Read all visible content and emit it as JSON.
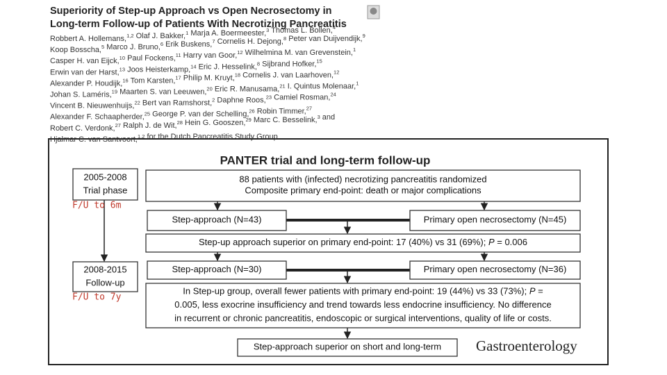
{
  "paper": {
    "title": [
      "Superiority of Step-up Approach vs Open Necrosectomy in",
      "Long-term Follow-up of Patients With Necrotizing Pancreatitis"
    ],
    "author_lines": [
      [
        {
          "name": "Robbert A. Hollemans,",
          "sup": "1,2"
        },
        {
          "name": "Olaf J. Bakker,",
          "sup": "1"
        },
        {
          "name": "Marja A. Boermeester,",
          "sup": "3"
        },
        {
          "name": "Thomas L. Bollen,",
          "sup": "4"
        }
      ],
      [
        {
          "name": "Koop Bosscha,",
          "sup": "5"
        },
        {
          "name": "Marco J. Bruno,",
          "sup": "6"
        },
        {
          "name": "Erik Buskens,",
          "sup": "7"
        },
        {
          "name": "Cornelis H. Dejong,",
          "sup": "8"
        },
        {
          "name": "Peter van Duijvendijk,",
          "sup": "9"
        }
      ],
      [
        {
          "name": "Casper H. van Eijck,",
          "sup": "10"
        },
        {
          "name": "Paul Fockens,",
          "sup": "11"
        },
        {
          "name": "Harry van Goor,",
          "sup": "12"
        },
        {
          "name": "Wilhelmina M. van Grevenstein,",
          "sup": "1"
        }
      ],
      [
        {
          "name": "Erwin van der Harst,",
          "sup": "13"
        },
        {
          "name": "Joos Heisterkamp,",
          "sup": "14"
        },
        {
          "name": "Eric J. Hesselink,",
          "sup": "8"
        },
        {
          "name": "Sijbrand Hofker,",
          "sup": "15"
        }
      ],
      [
        {
          "name": "Alexander P. Houdijk,",
          "sup": "16"
        },
        {
          "name": "Tom Karsten,",
          "sup": "17"
        },
        {
          "name": "Philip M. Kruyt,",
          "sup": "18"
        },
        {
          "name": "Cornelis J. van Laarhoven,",
          "sup": "12"
        }
      ],
      [
        {
          "name": "Johan S. Laméris,",
          "sup": "19"
        },
        {
          "name": "Maarten S. van Leeuwen,",
          "sup": "20"
        },
        {
          "name": "Eric R. Manusama,",
          "sup": "21"
        },
        {
          "name": "I. Quintus Molenaar,",
          "sup": "1"
        }
      ],
      [
        {
          "name": "Vincent B. Nieuwenhuijs,",
          "sup": "22"
        },
        {
          "name": "Bert van Ramshorst,",
          "sup": "2"
        },
        {
          "name": "Daphne Roos,",
          "sup": "23"
        },
        {
          "name": "Camiel Rosman,",
          "sup": "24"
        }
      ],
      [
        {
          "name": "Alexander F. Schaapherder,",
          "sup": "25"
        },
        {
          "name": "George P. van der Schelling,",
          "sup": "26"
        },
        {
          "name": "Robin Timmer,",
          "sup": "27"
        }
      ],
      [
        {
          "name": "Robert C. Verdonk,",
          "sup": "27"
        },
        {
          "name": "Ralph J. de Wit,",
          "sup": "28"
        },
        {
          "name": "Hein G. Gooszen,",
          "sup": "29"
        },
        {
          "name": "Marc C. Besselink,",
          "sup": "3",
          "after": "and"
        }
      ],
      [
        {
          "name": "Hjalmar C. van Santvoort,",
          "sup": "1,2",
          "after": "for the Dutch Pancreatitis Study Group"
        }
      ]
    ]
  },
  "diagram": {
    "title": "PANTER trial and long-term follow-up",
    "phases": [
      {
        "lines": [
          "2005-2008",
          "Trial phase"
        ],
        "note": "F/U to 6m"
      },
      {
        "lines": [
          "2008-2015",
          "Follow-up"
        ],
        "note": "F/U to 7y"
      }
    ],
    "boxes": [
      {
        "lines": [
          [
            "88 patients with (infected) necrotizing pancreatitis randomized"
          ],
          [
            "Composite primary end-point: death or major complications"
          ]
        ]
      },
      {
        "lines": [
          [
            "Step-approach (N=43)"
          ]
        ]
      },
      {
        "lines": [
          [
            "Primary open necrosectomy (N=45)"
          ]
        ]
      },
      {
        "lines": [
          [
            "Step-up approach superior on primary end-point: 17 (40%) vs 31 (69%); ",
            {
              "text": "P",
              "style": "italic"
            },
            " = 0.006"
          ]
        ]
      },
      {
        "lines": [
          [
            "Step-approach (N=30)"
          ]
        ]
      },
      {
        "lines": [
          [
            "Primary open necrosectomy (N=36)"
          ]
        ]
      },
      {
        "lines": [
          [
            "In Step-up group, overall fewer patients with primary end-point: 19 (44%) vs 33 (73%); ",
            {
              "text": "P",
              "style": "italic"
            },
            " ="
          ],
          [
            "0.005, less exocrine insufficiency and trend towards less endocrine insufficiency. No difference"
          ],
          [
            "in recurrent or chronic pancreatitis, endoscopic or surgical interventions, quality of life or costs."
          ]
        ]
      },
      {
        "lines": [
          [
            "Step-approach superior on short and long-term"
          ]
        ]
      }
    ],
    "source": "Gastroenterology"
  }
}
